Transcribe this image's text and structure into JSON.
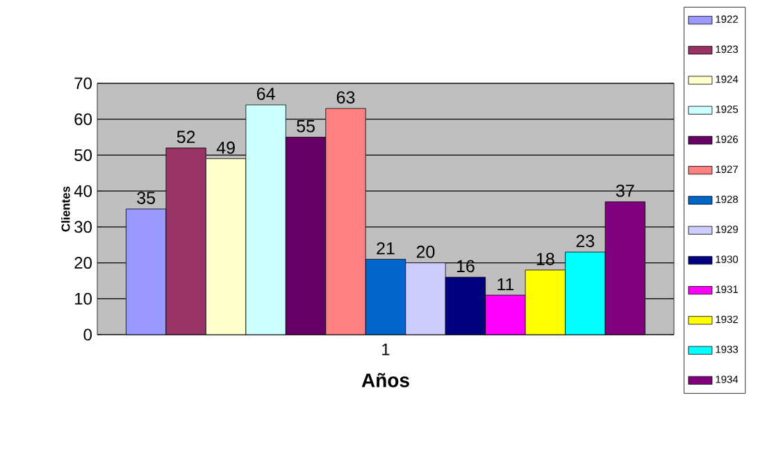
{
  "chart_data": {
    "type": "bar",
    "xlabel": "Años",
    "ylabel": "Clientes",
    "categories": [
      "1"
    ],
    "series": [
      {
        "name": "1922",
        "color": "#9999ff",
        "values": [
          35
        ]
      },
      {
        "name": "1923",
        "color": "#993366",
        "values": [
          52
        ]
      },
      {
        "name": "1924",
        "color": "#ffffcc",
        "values": [
          49
        ]
      },
      {
        "name": "1925",
        "color": "#ccffff",
        "values": [
          64
        ]
      },
      {
        "name": "1926",
        "color": "#660066",
        "values": [
          55
        ]
      },
      {
        "name": "1927",
        "color": "#ff8080",
        "values": [
          63
        ]
      },
      {
        "name": "1928",
        "color": "#0066cc",
        "values": [
          21
        ]
      },
      {
        "name": "1929",
        "color": "#ccccff",
        "values": [
          20
        ]
      },
      {
        "name": "1930",
        "color": "#000080",
        "values": [
          16
        ]
      },
      {
        "name": "1931",
        "color": "#ff00ff",
        "values": [
          11
        ]
      },
      {
        "name": "1932",
        "color": "#ffff00",
        "values": [
          18
        ]
      },
      {
        "name": "1933",
        "color": "#00ffff",
        "values": [
          23
        ]
      },
      {
        "name": "1934",
        "color": "#800080",
        "values": [
          37
        ]
      }
    ],
    "ylim": [
      0,
      70
    ],
    "yticks": [
      0,
      10,
      20,
      30,
      40,
      50,
      60,
      70
    ],
    "grid": "y",
    "legend": "right",
    "data_labels": true
  }
}
